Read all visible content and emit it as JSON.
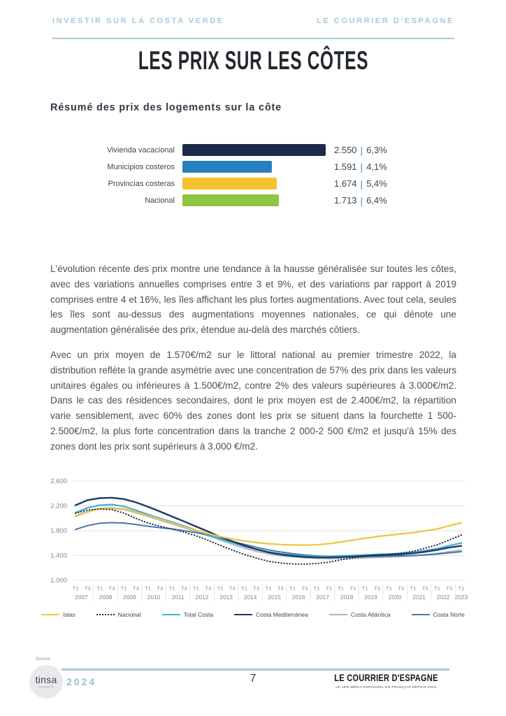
{
  "header": {
    "left": "INVESTIR SUR LA COSTA VERDE",
    "right": "LE COURRIER D'ESPAGNE"
  },
  "title": "LES PRIX SUR LES CÔTES",
  "section_heading": "Résumé des prix des logements sur la côte",
  "paragraphs": [
    "L'évolution récente des prix montre une tendance à la hausse généralisée sur toutes les côtes, avec des variations annuelles comprises entre 3 et 9%, et des variations par rapport à 2019 comprises entre 4 et 16%, les îles affichant les plus fortes augmentations. Avec tout cela, seules les îles sont au-dessus des augmentations moyennes nationales, ce qui dénote une augmentation généralisée des prix, étendue au-delà des marchés côtiers.",
    "Avec un prix moyen de 1.570€/m2 sur le littoral national au premier trimestre 2022, la distribution reflète la grande asymétrie avec une concentration de 57% des prix dans les valeurs unitaires égales ou inférieures à 1.500€/m2, contre 2% des valeurs supérieures à  3.000€/m2. Dans le cas des résidences secondaires, dont le prix moyen est de 2.400€/m2, la répartition varie sensiblement, avec 60% des zones dont les prix se situent dans la fourchette 1 500-2.500€/m2, la plus forte concentration dans la tranche 2 000-2 500 €/m2 et jusqu'à 15% des zones dont les prix sont supérieurs à 3.000 €/m2."
  ],
  "footer": {
    "source_label": "Source",
    "logo_main": "tinsa",
    "logo_sub": "research",
    "year": "2024",
    "page_number": "7",
    "brand": "LE COURRIER D'ESPAGNE",
    "brand_tagline": "LE 1ER MÉDIA ESPAGNOL EN FRANÇAIS DEPUIS 2004"
  },
  "colors": {
    "header_blue": "#a9c8d8",
    "value_separator_blue": "#4d93c8"
  },
  "chart_data": [
    {
      "type": "bar",
      "orientation": "horizontal",
      "categories": [
        "Vivienda vacacional",
        "Municipios costeros",
        "Provincias costeras",
        "Nacional"
      ],
      "values": [
        2550,
        1591,
        1674,
        1713
      ],
      "value_labels": [
        "2.550",
        "1.591",
        "1.674",
        "1.713"
      ],
      "value_separator": "|",
      "change_labels": [
        "6,3%",
        "4,1%",
        "5,4%",
        "6,4%"
      ],
      "bar_colors": [
        "#1b2a4a",
        "#2980be",
        "#f6c22e",
        "#8dc63f"
      ],
      "xlim": [
        0,
        2550
      ],
      "grid": false
    },
    {
      "type": "line",
      "title": "",
      "ylim": [
        1000,
        2600
      ],
      "yticks": [
        1000,
        1400,
        1800,
        2200,
        2600
      ],
      "ytick_labels": [
        "1.000",
        "1.400",
        "1.800",
        "2.200",
        "2.600"
      ],
      "grid": true,
      "legend_position": "bottom",
      "x_years": [
        {
          "year": "2007",
          "ticks": [
            "T1",
            "T3"
          ]
        },
        {
          "year": "2008",
          "ticks": [
            "T1",
            "T3"
          ]
        },
        {
          "year": "2009",
          "ticks": [
            "T1",
            "T3"
          ]
        },
        {
          "year": "2010",
          "ticks": [
            "T1",
            "T3"
          ]
        },
        {
          "year": "2011",
          "ticks": [
            "T1",
            "T3"
          ]
        },
        {
          "year": "2012",
          "ticks": [
            "T1",
            "T3"
          ]
        },
        {
          "year": "2013",
          "ticks": [
            "T1",
            "T3"
          ]
        },
        {
          "year": "2014",
          "ticks": [
            "T1",
            "T3"
          ]
        },
        {
          "year": "2015",
          "ticks": [
            "T1",
            "T3"
          ]
        },
        {
          "year": "2016",
          "ticks": [
            "T1",
            "T3"
          ]
        },
        {
          "year": "2017",
          "ticks": [
            "T1",
            "T3"
          ]
        },
        {
          "year": "2018",
          "ticks": [
            "T1",
            "T3"
          ]
        },
        {
          "year": "2019",
          "ticks": [
            "T1",
            "T3"
          ]
        },
        {
          "year": "2020",
          "ticks": [
            "T1",
            "T3"
          ]
        },
        {
          "year": "2021",
          "ticks": [
            "T1",
            "T3"
          ]
        },
        {
          "year": "2022",
          "ticks": [
            "T1",
            "T3"
          ]
        },
        {
          "year": "2023",
          "ticks": [
            "T1"
          ]
        }
      ],
      "series": [
        {
          "name": "Islas",
          "color": "#edc53f",
          "dotted": false,
          "width": 2.2,
          "values": [
            2030,
            2100,
            2155,
            2170,
            2150,
            2105,
            2045,
            1985,
            1925,
            1865,
            1805,
            1755,
            1705,
            1665,
            1635,
            1610,
            1590,
            1578,
            1570,
            1568,
            1572,
            1590,
            1618,
            1648,
            1678,
            1705,
            1728,
            1748,
            1768,
            1798,
            1828,
            1878,
            1930
          ]
        },
        {
          "name": "Nacional",
          "color": "#1c2b39",
          "dotted": true,
          "width": 2,
          "values": [
            2080,
            2135,
            2150,
            2140,
            2085,
            2000,
            1925,
            1872,
            1828,
            1778,
            1718,
            1645,
            1565,
            1488,
            1418,
            1358,
            1308,
            1280,
            1265,
            1260,
            1272,
            1292,
            1330,
            1360,
            1388,
            1408,
            1420,
            1438,
            1468,
            1518,
            1572,
            1650,
            1730
          ]
        },
        {
          "name": "Total Costa",
          "color": "#44addc",
          "dotted": false,
          "width": 2.2,
          "values": [
            2090,
            2170,
            2210,
            2222,
            2192,
            2130,
            2062,
            2000,
            1940,
            1878,
            1808,
            1738,
            1668,
            1608,
            1550,
            1500,
            1458,
            1428,
            1408,
            1395,
            1388,
            1388,
            1394,
            1400,
            1410,
            1418,
            1425,
            1435,
            1452,
            1480,
            1512,
            1560,
            1602
          ]
        },
        {
          "name": "Costa Mediterránea",
          "color": "#1e3a5f",
          "dotted": false,
          "width": 2.4,
          "values": [
            2210,
            2292,
            2325,
            2332,
            2310,
            2258,
            2188,
            2110,
            2030,
            1950,
            1868,
            1788,
            1700,
            1628,
            1560,
            1500,
            1452,
            1418,
            1394,
            1378,
            1370,
            1369,
            1374,
            1383,
            1393,
            1403,
            1410,
            1420,
            1436,
            1460,
            1490,
            1528,
            1556
          ]
        },
        {
          "name": "Costa Atlántica",
          "color": "#a6b5c8",
          "dotted": false,
          "width": 2,
          "values": [
            2040,
            2110,
            2150,
            2160,
            2140,
            2092,
            2030,
            1970,
            1910,
            1848,
            1788,
            1720,
            1650,
            1582,
            1520,
            1468,
            1428,
            1398,
            1378,
            1363,
            1354,
            1350,
            1350,
            1355,
            1362,
            1370,
            1376,
            1384,
            1394,
            1412,
            1434,
            1462,
            1488
          ]
        },
        {
          "name": "Costa Norte",
          "color": "#4b76ab",
          "dotted": false,
          "width": 2,
          "values": [
            1820,
            1882,
            1920,
            1930,
            1924,
            1900,
            1872,
            1850,
            1828,
            1800,
            1768,
            1728,
            1680,
            1630,
            1580,
            1532,
            1490,
            1458,
            1432,
            1410,
            1396,
            1386,
            1380,
            1380,
            1384,
            1388,
            1390,
            1394,
            1400,
            1410,
            1424,
            1444,
            1462
          ]
        }
      ]
    }
  ]
}
